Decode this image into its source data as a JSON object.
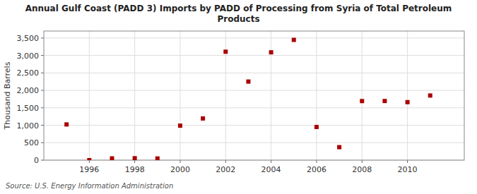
{
  "chart_data": {
    "type": "scatter",
    "title": "Annual Gulf Coast (PADD 3) Imports by PADD of Processing from Syria of Total Petroleum\nProducts",
    "ylabel": "Thousand Barrels",
    "annotations": [
      "Source: U.S. Energy Information Administration"
    ],
    "x": [
      1995,
      1996,
      1997,
      1998,
      1999,
      2000,
      2001,
      2002,
      2003,
      2004,
      2005,
      2006,
      2007,
      2008,
      2009,
      2010,
      2011
    ],
    "values": [
      1023,
      0,
      50,
      55,
      48,
      988,
      1195,
      3108,
      2252,
      3090,
      3447,
      951,
      372,
      1693,
      1695,
      1662,
      1852
    ],
    "color": "#aa0000",
    "marker": "square",
    "xlim": [
      1994.0,
      2012.5
    ],
    "ylim": [
      0,
      3700
    ],
    "xticks": [
      1996,
      1998,
      2000,
      2002,
      2004,
      2006,
      2008,
      2010
    ],
    "yticks": [
      0,
      500,
      {
        "value": 1000,
        "label": "1,000"
      },
      {
        "value": 1500,
        "label": "1,500"
      },
      {
        "value": 2000,
        "label": "2,000"
      },
      {
        "value": 2500,
        "label": "2,500"
      },
      {
        "value": 3000,
        "label": "3,000"
      },
      {
        "value": 3500,
        "label": "3,500"
      }
    ],
    "grid": true
  }
}
